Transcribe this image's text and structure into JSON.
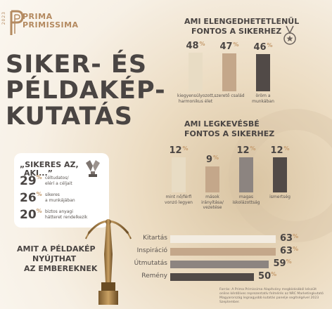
{
  "logo": {
    "year": "2023",
    "line1": "PRIMA",
    "line2": "PRIMISSIMA"
  },
  "title": {
    "line1": "SIKER- ÉS",
    "line2": "PÉLDAKÉP-",
    "line3": "KUTATÁS"
  },
  "top_section": {
    "heading_line1": "AMI ELENGEDHETETLENÜL",
    "heading_line2": "FONTOS A SIKERHEZ",
    "icon": "medal-icon"
  },
  "mid_section": {
    "heading_line1": "AMI LEGKEVÉSBÉ",
    "heading_line2": "FONTOS A SIKERHEZ"
  },
  "sikeres": {
    "title_line1": "„SIKERES AZ,",
    "title_line2": "AKI...”",
    "icon": "trophy-icon",
    "rows": [
      {
        "value": "29",
        "pct": "%",
        "text1": "céltudatos/",
        "text2": "elérí a céljait"
      },
      {
        "value": "26",
        "pct": "%",
        "text1": "sikeres",
        "text2": "a munkájában"
      },
      {
        "value": "20",
        "pct": "%",
        "text1": "biztos anyagi",
        "text2": "hátteret rendelkezik"
      }
    ]
  },
  "bottom_section": {
    "heading_line1": "AMIT A PÉLDAKÉP",
    "heading_line2": "NYÚJTHAT",
    "heading_line3": "AZ EMBEREKNEK"
  },
  "source": "Forrás: A Prima Primissima Alapítvány megbízásából készült online kérdőíves reprezentatív felmérés az NRC Marketingkutató Magyarország legnagyobb kutatás panelje segítségével 2023 Szeptember.",
  "chart_data": [
    {
      "type": "bar",
      "categories": [
        "kiegyensúlyozott, harmonikus élet",
        "szerető család",
        "öröm a munkában"
      ],
      "values": [
        48,
        47,
        46
      ],
      "unit": "%",
      "title": "AMI ELENGEDHETETLENÜL FONTOS A SIKERHEZ",
      "colors": [
        "#e8dcc4",
        "#c4a78a",
        "#514a47"
      ]
    },
    {
      "type": "bar",
      "categories": [
        "mint nő/férfi vonzó legyen",
        "mások irányítása/ vezetése",
        "magas iskolázottság",
        "ismertség"
      ],
      "values": [
        12,
        9,
        12,
        12
      ],
      "unit": "%",
      "title": "AMI LEGKEVÉSBÉ FONTOS A SIKERHEZ",
      "colors": [
        "#e8dcc4",
        "#c4a78a",
        "#8c8480",
        "#514a47"
      ]
    },
    {
      "type": "bar",
      "orientation": "horizontal",
      "categories": [
        "Kitartás",
        "Inspiráció",
        "Útmutatás",
        "Remény"
      ],
      "values": [
        63,
        63,
        59,
        50
      ],
      "unit": "%",
      "title": "AMIT A PÉLDAKÉP NYÚJTHAT AZ EMBEREKNEK",
      "colors": [
        "#f3ece1",
        "#c4a78a",
        "#8c8480",
        "#514a47"
      ]
    }
  ]
}
